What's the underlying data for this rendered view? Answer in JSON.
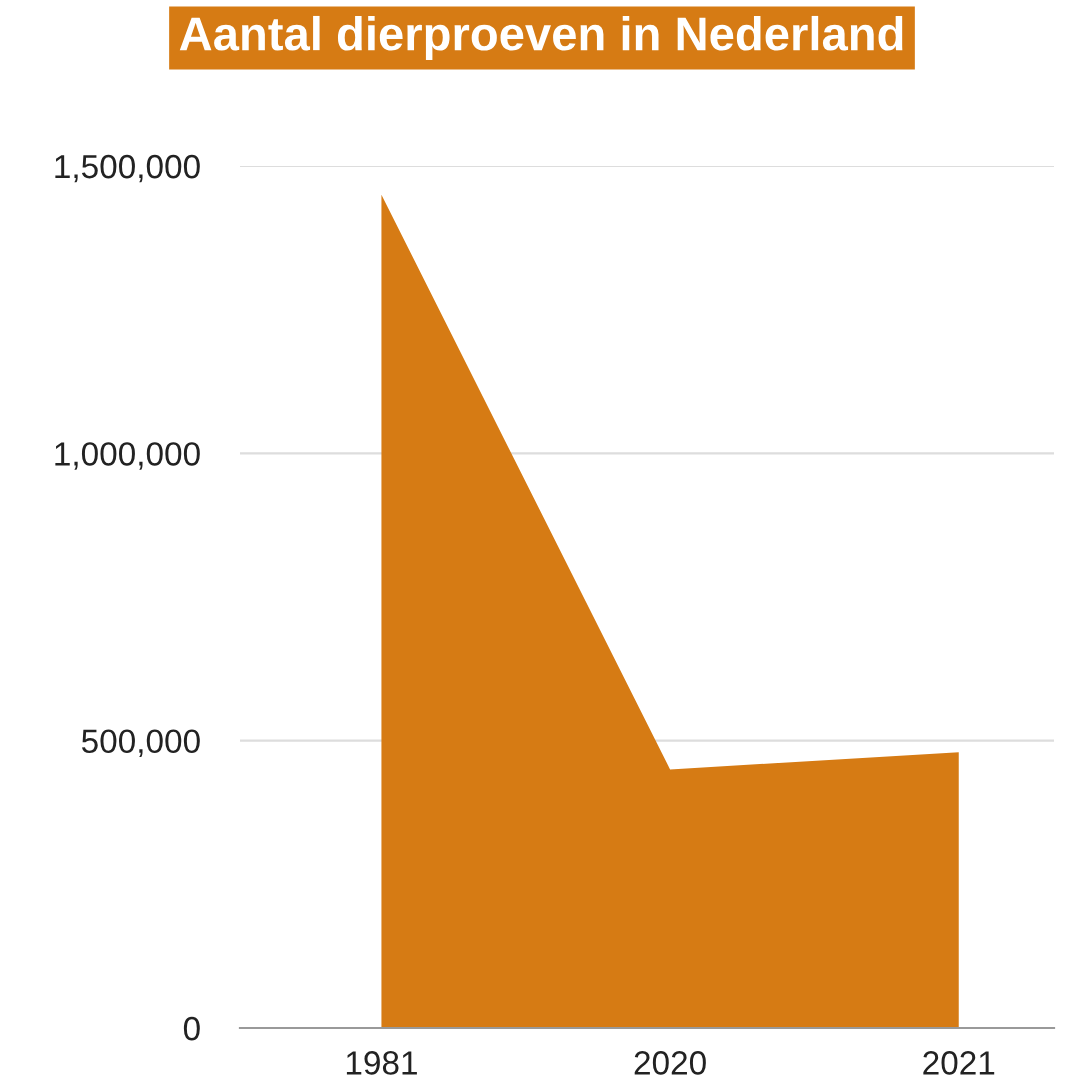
{
  "chart_data": {
    "type": "area",
    "title": "Aantal dierproeven in Nederland",
    "categories": [
      "1981",
      "2020",
      "2021"
    ],
    "series": [
      {
        "color": "#d67b14",
        "values": [
          1450000,
          450000,
          480000
        ]
      }
    ],
    "ylim": [
      0,
      1500000
    ],
    "yticks": [
      {
        "value": 0,
        "label": "0"
      },
      {
        "value": 500000,
        "label": "500,000"
      },
      {
        "value": 1000000,
        "label": "1,000,000"
      },
      {
        "value": 1500000,
        "label": "1,500,000"
      }
    ],
    "grid": "y",
    "legend": false
  }
}
